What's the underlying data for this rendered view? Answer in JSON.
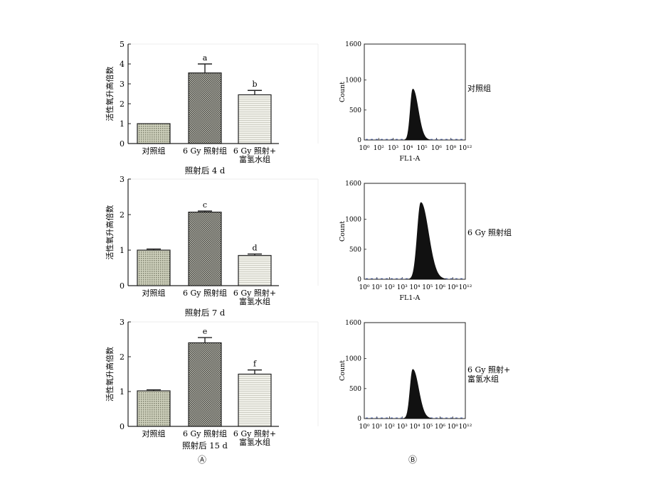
{
  "figure": {
    "panel_labels": [
      "Ⓐ",
      "Ⓑ"
    ]
  },
  "chart_data": [
    {
      "type": "bar",
      "title": "照射后 4 d",
      "ylabel": "活性氧升高倍数",
      "ylim": [
        0,
        5
      ],
      "yticks": [
        "0",
        "1",
        "2",
        "3",
        "4",
        "5"
      ],
      "categories": [
        [
          "对照组"
        ],
        [
          "6 Gy 照射组"
        ],
        [
          "6 Gy 照射+",
          "富氢水组"
        ]
      ],
      "values": [
        1.0,
        3.55,
        2.45
      ],
      "errors": [
        0.0,
        0.45,
        0.22
      ],
      "sig": [
        "",
        "a",
        "b"
      ],
      "fills": [
        "#b8bba2",
        "#8a8a80",
        "#e9e9e0"
      ]
    },
    {
      "type": "bar",
      "title": "照射后 7 d",
      "ylabel": "活性氧升高倍数",
      "ylim": [
        0,
        3
      ],
      "yticks": [
        "0",
        "1",
        "2",
        "3"
      ],
      "categories": [
        [
          "对照组"
        ],
        [
          "6 Gy 照射组"
        ],
        [
          "6 Gy 照射+",
          "富氢水组"
        ]
      ],
      "values": [
        1.0,
        2.07,
        0.85
      ],
      "errors": [
        0.03,
        0.03,
        0.04
      ],
      "sig": [
        "",
        "c",
        "d"
      ],
      "fills": [
        "#b8bba2",
        "#8a8a80",
        "#e9e9e0"
      ]
    },
    {
      "type": "bar",
      "title": "照射后 15 d",
      "ylabel": "活性氧升高倍数",
      "ylim": [
        0,
        3
      ],
      "yticks": [
        "0",
        "1",
        "2",
        "3"
      ],
      "categories": [
        [
          "对照组"
        ],
        [
          "6 Gy 照射组"
        ],
        [
          "6 Gy 照射+",
          "富氢水组"
        ]
      ],
      "values": [
        1.02,
        2.4,
        1.5
      ],
      "errors": [
        0.03,
        0.15,
        0.12
      ],
      "sig": [
        "",
        "e",
        "f"
      ],
      "fills": [
        "#b8bba2",
        "#8a8a80",
        "#e9e9e0"
      ]
    },
    {
      "type": "area",
      "xlabel": "FL1-A",
      "ylabel": "Count",
      "ylim": [
        0,
        1600
      ],
      "yticks": [
        "0",
        "500",
        "1000",
        "1600"
      ],
      "xticks": [
        "10⁰",
        "10²",
        "10³",
        "10⁴",
        "10⁵",
        "10⁶",
        "10⁸",
        "10¹²"
      ],
      "side_label": [
        "对照组"
      ],
      "peak_position": 0.48,
      "peak_count": 850,
      "spread": 0.035
    },
    {
      "type": "area",
      "xlabel": "FL1-A",
      "ylabel": "Count",
      "ylim": [
        0,
        1600
      ],
      "yticks": [
        "0",
        "500",
        "1000",
        "1600"
      ],
      "xticks": [
        "10⁰",
        "10¹",
        "10²",
        "10³",
        "10⁴",
        "10⁵",
        "10⁶",
        "10⁸",
        "10¹²"
      ],
      "side_label": [
        "6 Gy 照射组"
      ],
      "peak_position": 0.56,
      "peak_count": 1280,
      "spread": 0.05
    },
    {
      "type": "area",
      "xlabel": "",
      "ylabel": "Count",
      "ylim": [
        0,
        1600
      ],
      "yticks": [
        "0",
        "500",
        "1000",
        "1600"
      ],
      "xticks": [
        "10⁰",
        "10¹",
        "10²",
        "10³",
        "10⁴",
        "10⁵",
        "10⁶",
        "10⁸",
        "10¹²"
      ],
      "side_label": [
        "6 Gy 照射+",
        "富氢水组"
      ],
      "peak_position": 0.48,
      "peak_count": 820,
      "spread": 0.038
    }
  ]
}
